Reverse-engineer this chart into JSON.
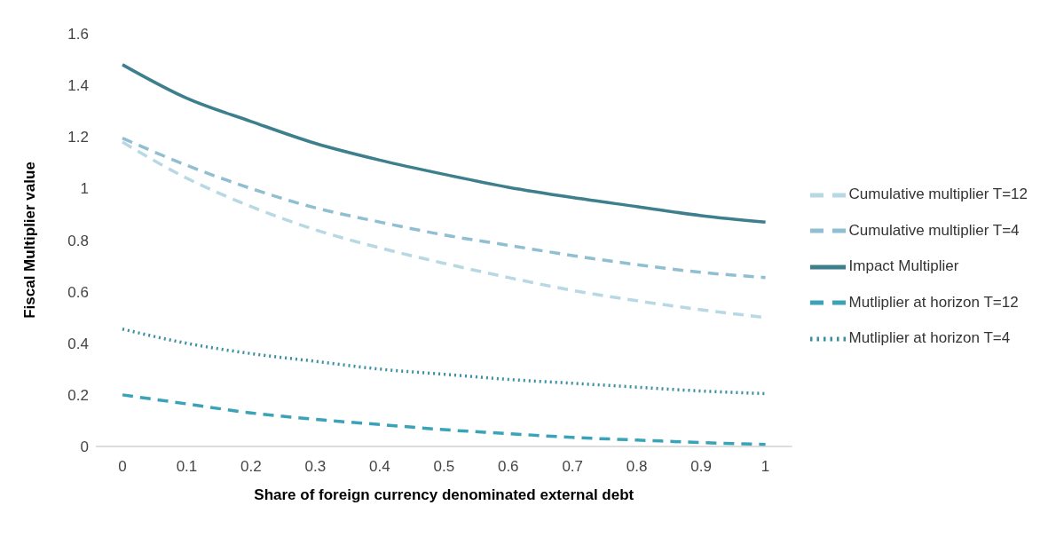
{
  "chart_data": {
    "type": "line",
    "xlabel": "Share of foreign currency denominated external debt",
    "ylabel": "Fiscal Multiplier value",
    "categories": [
      "0",
      "0.1",
      "0.2",
      "0.3",
      "0.4",
      "0.5",
      "0.6",
      "0.7",
      "0.8",
      "0.9",
      "1"
    ],
    "ylim": [
      0,
      1.6
    ],
    "yticks": [
      0,
      {
        "value": 0.2,
        "label": "0.2"
      },
      {
        "value": 0.4,
        "label": "0.4"
      },
      {
        "value": 0.6,
        "label": "0.6"
      },
      {
        "value": 0.8,
        "label": "0.8"
      },
      1,
      {
        "value": 1.2,
        "label": "1.2"
      },
      {
        "value": 1.4,
        "label": "1.4"
      },
      {
        "value": 1.6,
        "label": "1.6"
      }
    ],
    "grid": false,
    "legend": "right",
    "marker": "none",
    "series": [
      {
        "name": "Impact Multiplier",
        "color": "#3d7f8c",
        "line_style": "solid",
        "values": [
          1.48,
          1.35,
          1.26,
          1.175,
          1.11,
          1.055,
          1.005,
          0.965,
          0.93,
          0.895,
          0.87
        ]
      },
      {
        "name": "Mutliplier at horizon T=4",
        "color": "#3a8fa0",
        "line_style": "dotted",
        "values": [
          0.455,
          0.4,
          0.36,
          0.33,
          0.3,
          0.28,
          0.26,
          0.245,
          0.23,
          0.215,
          0.205
        ]
      },
      {
        "name": "Mutliplier at horizon T=12",
        "color": "#3aa3b8",
        "line_style": "dashed",
        "values": [
          0.2,
          0.165,
          0.13,
          0.105,
          0.085,
          0.065,
          0.05,
          0.035,
          0.025,
          0.015,
          0.008
        ]
      },
      {
        "name": "Cumulative multiplier T=4",
        "color": "#8fbfd0",
        "line_style": "dashed",
        "values": [
          1.195,
          1.09,
          1.0,
          0.925,
          0.87,
          0.82,
          0.78,
          0.74,
          0.705,
          0.675,
          0.655
        ]
      },
      {
        "name": "Cumulative multiplier T=12",
        "color": "#b8d8e3",
        "line_style": "dashed",
        "values": [
          1.18,
          1.04,
          0.93,
          0.84,
          0.77,
          0.71,
          0.655,
          0.605,
          0.565,
          0.53,
          0.5
        ]
      }
    ]
  }
}
